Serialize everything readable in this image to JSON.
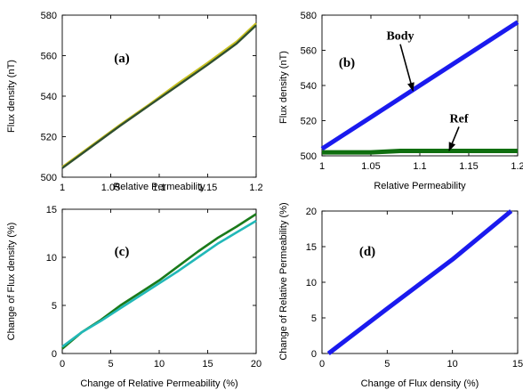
{
  "chart_data": [
    {
      "type": "line",
      "panel_label": "(a)",
      "xlabel": "Relative Permeability",
      "ylabel": "Flux density (nT)",
      "xlim": [
        1,
        1.2
      ],
      "ylim": [
        500,
        580
      ],
      "xticks": [
        1,
        1.05,
        1.1,
        1.15,
        1.2
      ],
      "xtick_labels": [
        "1",
        "1.05",
        "1.1",
        "1.15",
        "1.2"
      ],
      "yticks": [
        500,
        520,
        540,
        560,
        580
      ],
      "ytick_labels": [
        "500",
        "520",
        "540",
        "560",
        "580"
      ],
      "grid": false,
      "series": [
        {
          "color": "#c8c020",
          "x": [
            1,
            1.03,
            1.06,
            1.09,
            1.12,
            1.15,
            1.18,
            1.2
          ],
          "y": [
            505,
            515.5,
            526,
            536,
            546.5,
            556.5,
            567,
            576
          ]
        },
        {
          "color": "#2f4f2f",
          "x": [
            1,
            1.03,
            1.06,
            1.09,
            1.12,
            1.15,
            1.18,
            1.2
          ],
          "y": [
            504.5,
            515,
            525.5,
            535.5,
            545.5,
            555.5,
            566,
            575
          ]
        }
      ],
      "annotations": []
    },
    {
      "type": "line",
      "panel_label": "(b)",
      "xlabel": "Relative Permeability",
      "ylabel": "Flux density (nT)",
      "xlim": [
        1,
        1.2
      ],
      "ylim": [
        500,
        580
      ],
      "xticks": [
        1,
        1.05,
        1.1,
        1.15,
        1.2
      ],
      "xtick_labels": [
        "1",
        "1.05",
        "1.1",
        "1.15",
        "1.2"
      ],
      "yticks": [
        500,
        520,
        540,
        560,
        580
      ],
      "ytick_labels": [
        "500",
        "520",
        "540",
        "560",
        "580"
      ],
      "grid": false,
      "series": [
        {
          "color": "#1a1aee",
          "x": [
            1,
            1.05,
            1.1,
            1.15,
            1.2
          ],
          "y": [
            504,
            522,
            540,
            558,
            576
          ]
        },
        {
          "color": "#0f6e0f",
          "x": [
            1,
            1.05,
            1.08,
            1.1,
            1.15,
            1.2
          ],
          "y": [
            502,
            502,
            502.8,
            502.8,
            502.8,
            502.8
          ]
        }
      ],
      "annotations": [
        {
          "text": "Body",
          "label_x": 1.08,
          "label_y": 566,
          "arrow_to_x": 1.093,
          "arrow_to_y": 537
        },
        {
          "text": "Ref",
          "label_x": 1.14,
          "label_y": 519,
          "arrow_to_x": 1.13,
          "arrow_to_y": 503
        }
      ]
    },
    {
      "type": "line",
      "panel_label": "(c)",
      "xlabel": "Change of Relative Permeability (%)",
      "ylabel": "Change of Flux density (%)",
      "xlim": [
        0,
        20
      ],
      "ylim": [
        0,
        15
      ],
      "xticks": [
        0,
        5,
        10,
        15,
        20
      ],
      "xtick_labels": [
        "0",
        "5",
        "10",
        "15",
        "20"
      ],
      "yticks": [
        0,
        5,
        10,
        15
      ],
      "ytick_labels": [
        "0",
        "5",
        "10",
        "15"
      ],
      "grid": false,
      "series": [
        {
          "color": "#1a7a1a",
          "x": [
            0,
            2,
            4,
            6,
            8,
            10,
            12,
            14,
            16,
            18,
            20
          ],
          "y": [
            0.5,
            2.2,
            3.5,
            5.0,
            6.3,
            7.6,
            9.1,
            10.6,
            12.0,
            13.2,
            14.5
          ]
        },
        {
          "color": "#22b8b8",
          "x": [
            0,
            2,
            4,
            6,
            8,
            10,
            12,
            14,
            16,
            18,
            20
          ],
          "y": [
            0.7,
            2.2,
            3.4,
            4.7,
            6.0,
            7.3,
            8.6,
            10.0,
            11.4,
            12.6,
            13.8
          ]
        }
      ],
      "annotations": []
    },
    {
      "type": "line",
      "panel_label": "(d)",
      "xlabel": "Change of Flux density (%)",
      "ylabel": "Change of Relative Permeability (%)",
      "xlim": [
        0,
        15
      ],
      "ylim": [
        0,
        20
      ],
      "xticks": [
        0,
        5,
        10,
        15
      ],
      "xtick_labels": [
        "0",
        "5",
        "10",
        "15"
      ],
      "yticks": [
        0,
        5,
        10,
        15,
        20
      ],
      "ytick_labels": [
        "0",
        "5",
        "10",
        "15",
        "20"
      ],
      "grid": false,
      "series": [
        {
          "color": "#1a1aee",
          "x": [
            0.5,
            5,
            10,
            14.5
          ],
          "y": [
            0,
            6.3,
            13.2,
            20
          ]
        }
      ],
      "annotations": []
    }
  ]
}
